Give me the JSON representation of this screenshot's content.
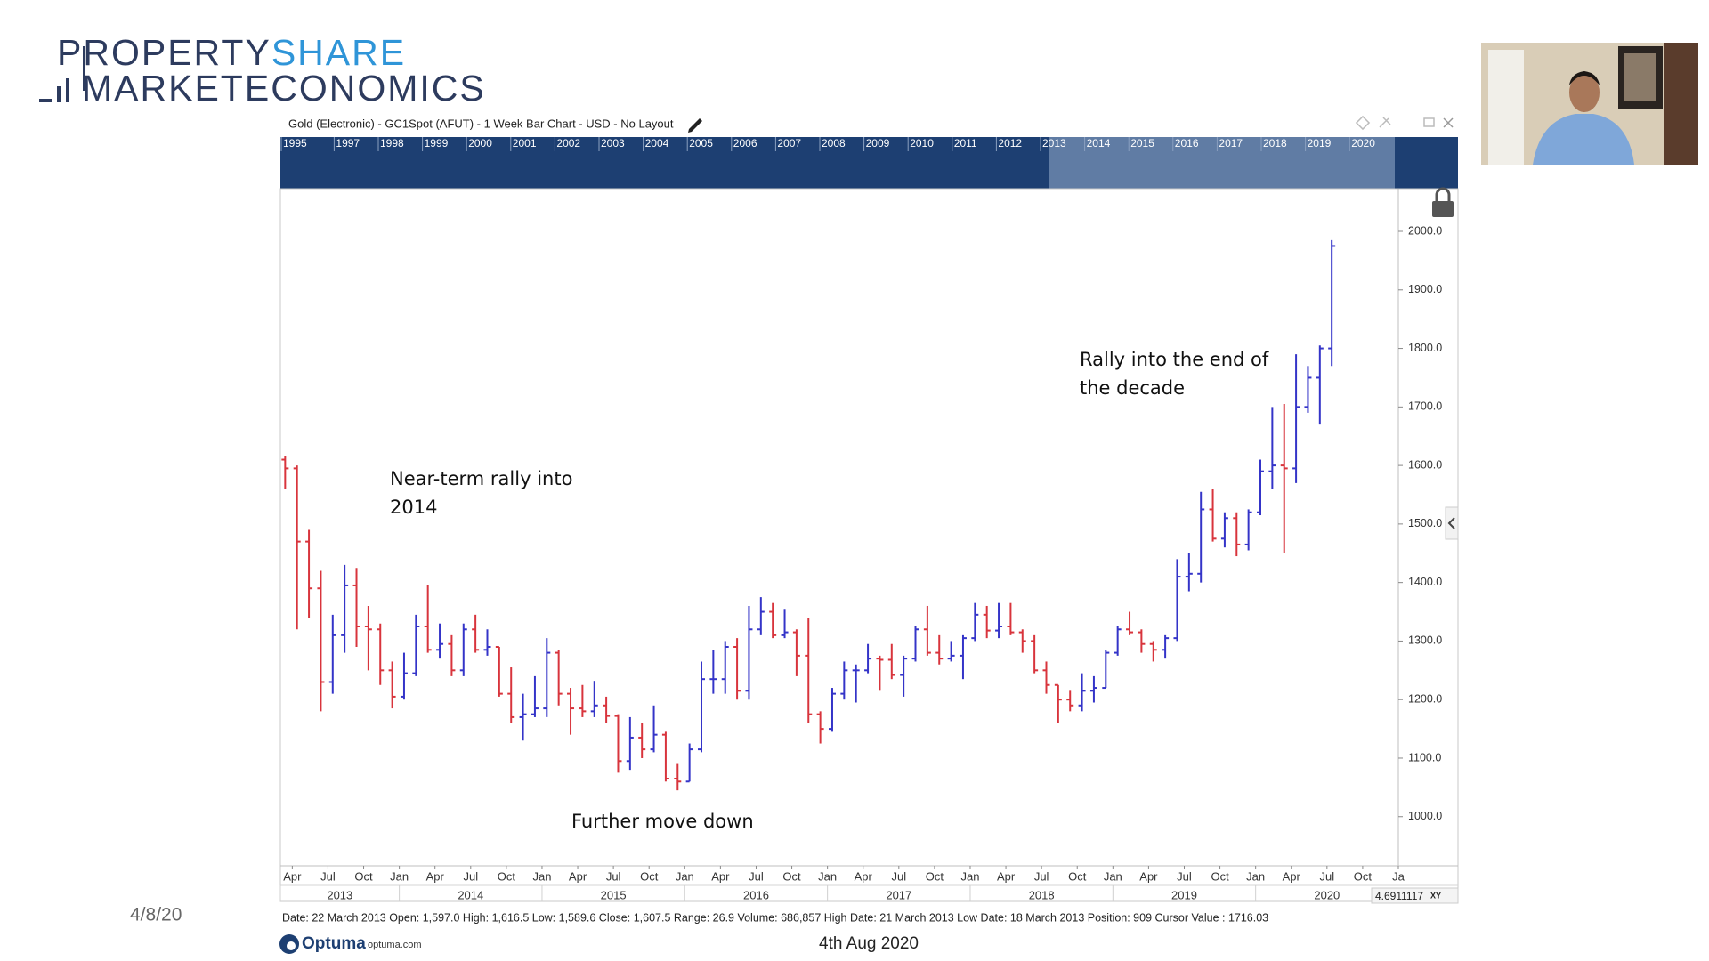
{
  "header": {
    "logo": {
      "property": "PROPERTY",
      "share": "SHARE",
      "market": "MARKET",
      "economics": "ECONOMICS"
    },
    "slide_date": "4/8/20",
    "footer_date": "4th Aug 2020",
    "brand": "Optuma",
    "brand_url": "optuma.com"
  },
  "chart_data": {
    "type": "ohlc",
    "title": "Gold (Electronic) - GC1Spot (AFUT) - 1 Week Bar Chart - USD - No Layout",
    "navigator_years": [
      1995,
      1997,
      1998,
      1999,
      2000,
      2001,
      2002,
      2003,
      2004,
      2005,
      2006,
      2007,
      2008,
      2009,
      2010,
      2011,
      2012,
      2013,
      2014,
      2015,
      2016,
      2017,
      2018,
      2019,
      2020
    ],
    "info": "Date: 22 March 2013 Open: 1,597.0 High: 1,616.5 Low: 1,589.6 Close: 1,607.5 Range: 26.9 Volume: 686,857 High Date: 21 March 2013 Low Date: 18 March 2013 Position: 909 Cursor Value : 1716.03",
    "cursor_value": "4.6911117",
    "cursor_mode": "XY",
    "up_color": "#3434c8",
    "down_color": "#d8343c",
    "annotations": [
      {
        "lines": [
          "Near-term rally into",
          "2014"
        ]
      },
      {
        "lines": [
          "Further move down"
        ]
      },
      {
        "lines": [
          "Rally into the end of",
          "the decade"
        ]
      }
    ],
    "x": [
      "2013-03",
      "2013-04",
      "2013-05",
      "2013-06",
      "2013-07",
      "2013-08",
      "2013-09",
      "2013-10",
      "2013-11",
      "2013-12",
      "2014-01",
      "2014-02",
      "2014-03",
      "2014-04",
      "2014-05",
      "2014-06",
      "2014-07",
      "2014-08",
      "2014-09",
      "2014-10",
      "2014-11",
      "2014-12",
      "2015-01",
      "2015-02",
      "2015-03",
      "2015-04",
      "2015-05",
      "2015-06",
      "2015-07",
      "2015-08",
      "2015-09",
      "2015-10",
      "2015-11",
      "2015-12",
      "2016-01",
      "2016-02",
      "2016-03",
      "2016-04",
      "2016-05",
      "2016-06",
      "2016-07",
      "2016-08",
      "2016-09",
      "2016-10",
      "2016-11",
      "2016-12",
      "2017-01",
      "2017-02",
      "2017-03",
      "2017-04",
      "2017-05",
      "2017-06",
      "2017-07",
      "2017-08",
      "2017-09",
      "2017-10",
      "2017-11",
      "2017-12",
      "2018-01",
      "2018-02",
      "2018-03",
      "2018-04",
      "2018-05",
      "2018-06",
      "2018-07",
      "2018-08",
      "2018-09",
      "2018-10",
      "2018-11",
      "2018-12",
      "2019-01",
      "2019-02",
      "2019-03",
      "2019-04",
      "2019-05",
      "2019-06",
      "2019-07",
      "2019-08",
      "2019-09",
      "2019-10",
      "2019-11",
      "2019-12",
      "2020-01",
      "2020-02",
      "2020-03",
      "2020-04",
      "2020-05",
      "2020-06",
      "2020-07"
    ],
    "open": [
      1610,
      1595,
      1470,
      1390,
      1230,
      1310,
      1395,
      1325,
      1320,
      1250,
      1205,
      1245,
      1325,
      1285,
      1295,
      1250,
      1320,
      1285,
      1290,
      1210,
      1170,
      1175,
      1185,
      1280,
      1210,
      1185,
      1180,
      1190,
      1172,
      1095,
      1135,
      1115,
      1140,
      1065,
      1060,
      1115,
      1235,
      1235,
      1290,
      1215,
      1320,
      1350,
      1310,
      1315,
      1275,
      1175,
      1150,
      1210,
      1250,
      1250,
      1270,
      1268,
      1242,
      1270,
      1320,
      1280,
      1270,
      1275,
      1305,
      1345,
      1318,
      1325,
      1315,
      1300,
      1250,
      1225,
      1200,
      1190,
      1215,
      1220,
      1280,
      1320,
      1315,
      1295,
      1285,
      1305,
      1410,
      1415,
      1525,
      1475,
      1510,
      1465,
      1520,
      1590,
      1600,
      1595,
      1700,
      1750,
      1800
    ],
    "high": [
      1616,
      1600,
      1490,
      1420,
      1345,
      1430,
      1425,
      1360,
      1330,
      1265,
      1280,
      1345,
      1395,
      1330,
      1310,
      1330,
      1345,
      1320,
      1290,
      1255,
      1210,
      1240,
      1305,
      1285,
      1220,
      1225,
      1232,
      1205,
      1175,
      1170,
      1160,
      1190,
      1145,
      1090,
      1125,
      1265,
      1285,
      1300,
      1305,
      1360,
      1375,
      1365,
      1355,
      1320,
      1340,
      1180,
      1220,
      1265,
      1260,
      1295,
      1275,
      1295,
      1275,
      1325,
      1360,
      1310,
      1300,
      1310,
      1365,
      1360,
      1365,
      1365,
      1320,
      1310,
      1265,
      1225,
      1215,
      1245,
      1240,
      1285,
      1325,
      1350,
      1320,
      1300,
      1310,
      1440,
      1450,
      1555,
      1560,
      1520,
      1520,
      1525,
      1610,
      1700,
      1705,
      1790,
      1770,
      1805,
      1985
    ],
    "low": [
      1560,
      1320,
      1340,
      1180,
      1210,
      1280,
      1290,
      1250,
      1225,
      1185,
      1200,
      1240,
      1280,
      1270,
      1240,
      1240,
      1280,
      1275,
      1205,
      1160,
      1130,
      1170,
      1170,
      1190,
      1140,
      1170,
      1170,
      1160,
      1075,
      1080,
      1100,
      1110,
      1060,
      1045,
      1060,
      1110,
      1210,
      1210,
      1200,
      1200,
      1310,
      1305,
      1305,
      1240,
      1160,
      1125,
      1145,
      1200,
      1195,
      1245,
      1215,
      1235,
      1205,
      1265,
      1275,
      1260,
      1265,
      1235,
      1300,
      1305,
      1305,
      1310,
      1280,
      1245,
      1210,
      1160,
      1180,
      1180,
      1195,
      1220,
      1275,
      1310,
      1280,
      1265,
      1270,
      1300,
      1385,
      1400,
      1470,
      1460,
      1445,
      1455,
      1515,
      1560,
      1450,
      1570,
      1690,
      1670,
      1770
    ],
    "close": [
      1595,
      1470,
      1390,
      1230,
      1310,
      1395,
      1325,
      1320,
      1250,
      1205,
      1245,
      1325,
      1285,
      1295,
      1250,
      1320,
      1285,
      1290,
      1210,
      1170,
      1175,
      1185,
      1280,
      1210,
      1185,
      1180,
      1190,
      1172,
      1095,
      1135,
      1115,
      1140,
      1065,
      1060,
      1115,
      1235,
      1235,
      1290,
      1215,
      1320,
      1350,
      1310,
      1315,
      1275,
      1175,
      1150,
      1210,
      1250,
      1250,
      1270,
      1268,
      1242,
      1270,
      1320,
      1280,
      1270,
      1275,
      1305,
      1345,
      1318,
      1325,
      1315,
      1300,
      1250,
      1225,
      1200,
      1190,
      1215,
      1220,
      1280,
      1320,
      1315,
      1295,
      1285,
      1305,
      1410,
      1415,
      1525,
      1475,
      1510,
      1465,
      1520,
      1590,
      1600,
      1595,
      1700,
      1750,
      1800,
      1975
    ],
    "xlim": [
      "2013-03",
      "2021-01"
    ],
    "xticks": [
      {
        "value": "2013-04",
        "label": "Apr"
      },
      {
        "value": "2013-07",
        "label": "Jul"
      },
      {
        "value": "2013-10",
        "label": "Oct"
      },
      {
        "value": "2014-01",
        "label": "Jan"
      },
      {
        "value": "2014-04",
        "label": "Apr"
      },
      {
        "value": "2014-07",
        "label": "Jul"
      },
      {
        "value": "2014-10",
        "label": "Oct"
      },
      {
        "value": "2015-01",
        "label": "Jan"
      },
      {
        "value": "2015-04",
        "label": "Apr"
      },
      {
        "value": "2015-07",
        "label": "Jul"
      },
      {
        "value": "2015-10",
        "label": "Oct"
      },
      {
        "value": "2016-01",
        "label": "Jan"
      },
      {
        "value": "2016-04",
        "label": "Apr"
      },
      {
        "value": "2016-07",
        "label": "Jul"
      },
      {
        "value": "2016-10",
        "label": "Oct"
      },
      {
        "value": "2017-01",
        "label": "Jan"
      },
      {
        "value": "2017-04",
        "label": "Apr"
      },
      {
        "value": "2017-07",
        "label": "Jul"
      },
      {
        "value": "2017-10",
        "label": "Oct"
      },
      {
        "value": "2018-01",
        "label": "Jan"
      },
      {
        "value": "2018-04",
        "label": "Apr"
      },
      {
        "value": "2018-07",
        "label": "Jul"
      },
      {
        "value": "2018-10",
        "label": "Oct"
      },
      {
        "value": "2019-01",
        "label": "Jan"
      },
      {
        "value": "2019-04",
        "label": "Apr"
      },
      {
        "value": "2019-07",
        "label": "Jul"
      },
      {
        "value": "2019-10",
        "label": "Oct"
      },
      {
        "value": "2020-01",
        "label": "Jan"
      },
      {
        "value": "2020-04",
        "label": "Apr"
      },
      {
        "value": "2020-07",
        "label": "Jul"
      },
      {
        "value": "2020-10",
        "label": "Oct"
      },
      {
        "value": "2021-01",
        "label": "Ja"
      }
    ],
    "year_ticks": [
      2013,
      2014,
      2015,
      2016,
      2017,
      2018,
      2019,
      2020
    ],
    "ylim": [
      916,
      2073
    ],
    "yticks": [
      {
        "value": 1000,
        "label": "1000.0"
      },
      {
        "value": 1100,
        "label": "1100.0"
      },
      {
        "value": 1200,
        "label": "1200.0"
      },
      {
        "value": 1300,
        "label": "1300.0"
      },
      {
        "value": 1400,
        "label": "1400.0"
      },
      {
        "value": 1500,
        "label": "1500.0"
      },
      {
        "value": 1600,
        "label": "1600.0"
      },
      {
        "value": 1700,
        "label": "1700.0"
      },
      {
        "value": 1800,
        "label": "1800.0"
      },
      {
        "value": 1900,
        "label": "1900.0"
      },
      {
        "value": 2000,
        "label": "2000.0"
      }
    ]
  }
}
